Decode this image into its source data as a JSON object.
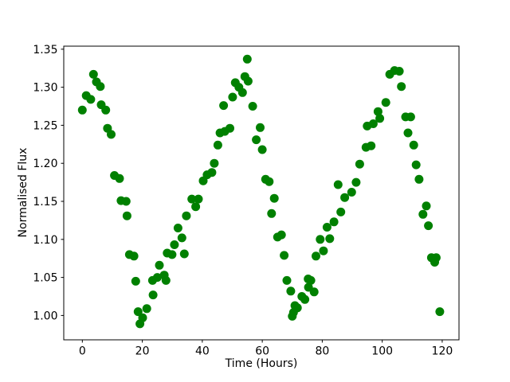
{
  "figure": {
    "background_color": "#ffffff",
    "axis_color": "#000000",
    "text_color": "#000000"
  },
  "chart_data": {
    "type": "scatter",
    "title": "",
    "xlabel": "Time (Hours)",
    "ylabel": "Normalised Flux",
    "legend": null,
    "grid": false,
    "xlim": [
      -6.2,
      125.6
    ],
    "ylim": [
      0.968,
      1.354
    ],
    "xtick_values": [
      0,
      20,
      40,
      60,
      80,
      100,
      120
    ],
    "xtick_labels": [
      "0",
      "20",
      "40",
      "60",
      "80",
      "100",
      "120"
    ],
    "ytick_values": [
      1.0,
      1.05,
      1.1,
      1.15,
      1.2,
      1.25,
      1.3,
      1.35
    ],
    "ytick_labels": [
      "1.00",
      "1.05",
      "1.10",
      "1.15",
      "1.20",
      "1.25",
      "1.30",
      "1.35"
    ],
    "series": [
      {
        "name": "normalised-flux-points",
        "marker": "circle",
        "color": "#008000",
        "points": [
          [
            0.0,
            1.27
          ],
          [
            1.3,
            1.289
          ],
          [
            2.8,
            1.284
          ],
          [
            3.7,
            1.317
          ],
          [
            4.7,
            1.307
          ],
          [
            6.0,
            1.301
          ],
          [
            6.3,
            1.277
          ],
          [
            7.8,
            1.27
          ],
          [
            8.4,
            1.246
          ],
          [
            9.6,
            1.238
          ],
          [
            10.7,
            1.184
          ],
          [
            12.4,
            1.18
          ],
          [
            12.9,
            1.151
          ],
          [
            14.6,
            1.15
          ],
          [
            14.9,
            1.131
          ],
          [
            15.7,
            1.08
          ],
          [
            17.2,
            1.078
          ],
          [
            17.8,
            1.045
          ],
          [
            18.6,
            1.005
          ],
          [
            19.2,
            0.989
          ],
          [
            20.1,
            0.997
          ],
          [
            21.5,
            1.009
          ],
          [
            23.4,
            1.046
          ],
          [
            23.6,
            1.027
          ],
          [
            25.0,
            1.05
          ],
          [
            25.7,
            1.066
          ],
          [
            27.3,
            1.053
          ],
          [
            27.9,
            1.046
          ],
          [
            28.3,
            1.082
          ],
          [
            29.9,
            1.08
          ],
          [
            30.7,
            1.093
          ],
          [
            31.9,
            1.115
          ],
          [
            33.2,
            1.102
          ],
          [
            34.0,
            1.081
          ],
          [
            34.7,
            1.131
          ],
          [
            36.5,
            1.153
          ],
          [
            37.8,
            1.143
          ],
          [
            38.7,
            1.153
          ],
          [
            40.3,
            1.177
          ],
          [
            41.6,
            1.185
          ],
          [
            43.2,
            1.188
          ],
          [
            44.0,
            1.2
          ],
          [
            45.2,
            1.224
          ],
          [
            45.9,
            1.24
          ],
          [
            47.1,
            1.276
          ],
          [
            47.5,
            1.242
          ],
          [
            49.2,
            1.246
          ],
          [
            50.1,
            1.287
          ],
          [
            51.0,
            1.306
          ],
          [
            52.2,
            1.3
          ],
          [
            53.4,
            1.293
          ],
          [
            54.2,
            1.314
          ],
          [
            55.0,
            1.337
          ],
          [
            55.3,
            1.308
          ],
          [
            56.8,
            1.275
          ],
          [
            58.0,
            1.231
          ],
          [
            59.3,
            1.247
          ],
          [
            60.0,
            1.218
          ],
          [
            61.1,
            1.179
          ],
          [
            62.3,
            1.176
          ],
          [
            63.1,
            1.134
          ],
          [
            64.0,
            1.154
          ],
          [
            65.1,
            1.103
          ],
          [
            66.4,
            1.106
          ],
          [
            67.3,
            1.079
          ],
          [
            68.2,
            1.046
          ],
          [
            69.5,
            1.032
          ],
          [
            70.0,
            0.999
          ],
          [
            70.4,
            1.004
          ],
          [
            70.9,
            1.013
          ],
          [
            71.7,
            1.01
          ],
          [
            73.2,
            1.025
          ],
          [
            74.2,
            1.021
          ],
          [
            75.3,
            1.048
          ],
          [
            75.4,
            1.037
          ],
          [
            76.2,
            1.046
          ],
          [
            77.3,
            1.031
          ],
          [
            77.9,
            1.078
          ],
          [
            79.3,
            1.1
          ],
          [
            80.4,
            1.085
          ],
          [
            81.6,
            1.116
          ],
          [
            82.5,
            1.101
          ],
          [
            83.9,
            1.123
          ],
          [
            85.3,
            1.172
          ],
          [
            86.2,
            1.136
          ],
          [
            87.5,
            1.155
          ],
          [
            89.8,
            1.162
          ],
          [
            91.3,
            1.175
          ],
          [
            92.5,
            1.199
          ],
          [
            94.6,
            1.221
          ],
          [
            95.0,
            1.249
          ],
          [
            96.3,
            1.223
          ],
          [
            97.0,
            1.252
          ],
          [
            98.6,
            1.268
          ],
          [
            99.2,
            1.259
          ],
          [
            101.2,
            1.28
          ],
          [
            102.5,
            1.317
          ],
          [
            104.1,
            1.322
          ],
          [
            105.7,
            1.321
          ],
          [
            106.4,
            1.301
          ],
          [
            107.8,
            1.261
          ],
          [
            108.6,
            1.24
          ],
          [
            109.5,
            1.261
          ],
          [
            110.5,
            1.224
          ],
          [
            111.3,
            1.198
          ],
          [
            112.3,
            1.179
          ],
          [
            113.6,
            1.133
          ],
          [
            114.7,
            1.144
          ],
          [
            115.4,
            1.118
          ],
          [
            116.4,
            1.076
          ],
          [
            117.5,
            1.07
          ],
          [
            118.0,
            1.076
          ],
          [
            119.2,
            1.005
          ]
        ]
      }
    ]
  }
}
